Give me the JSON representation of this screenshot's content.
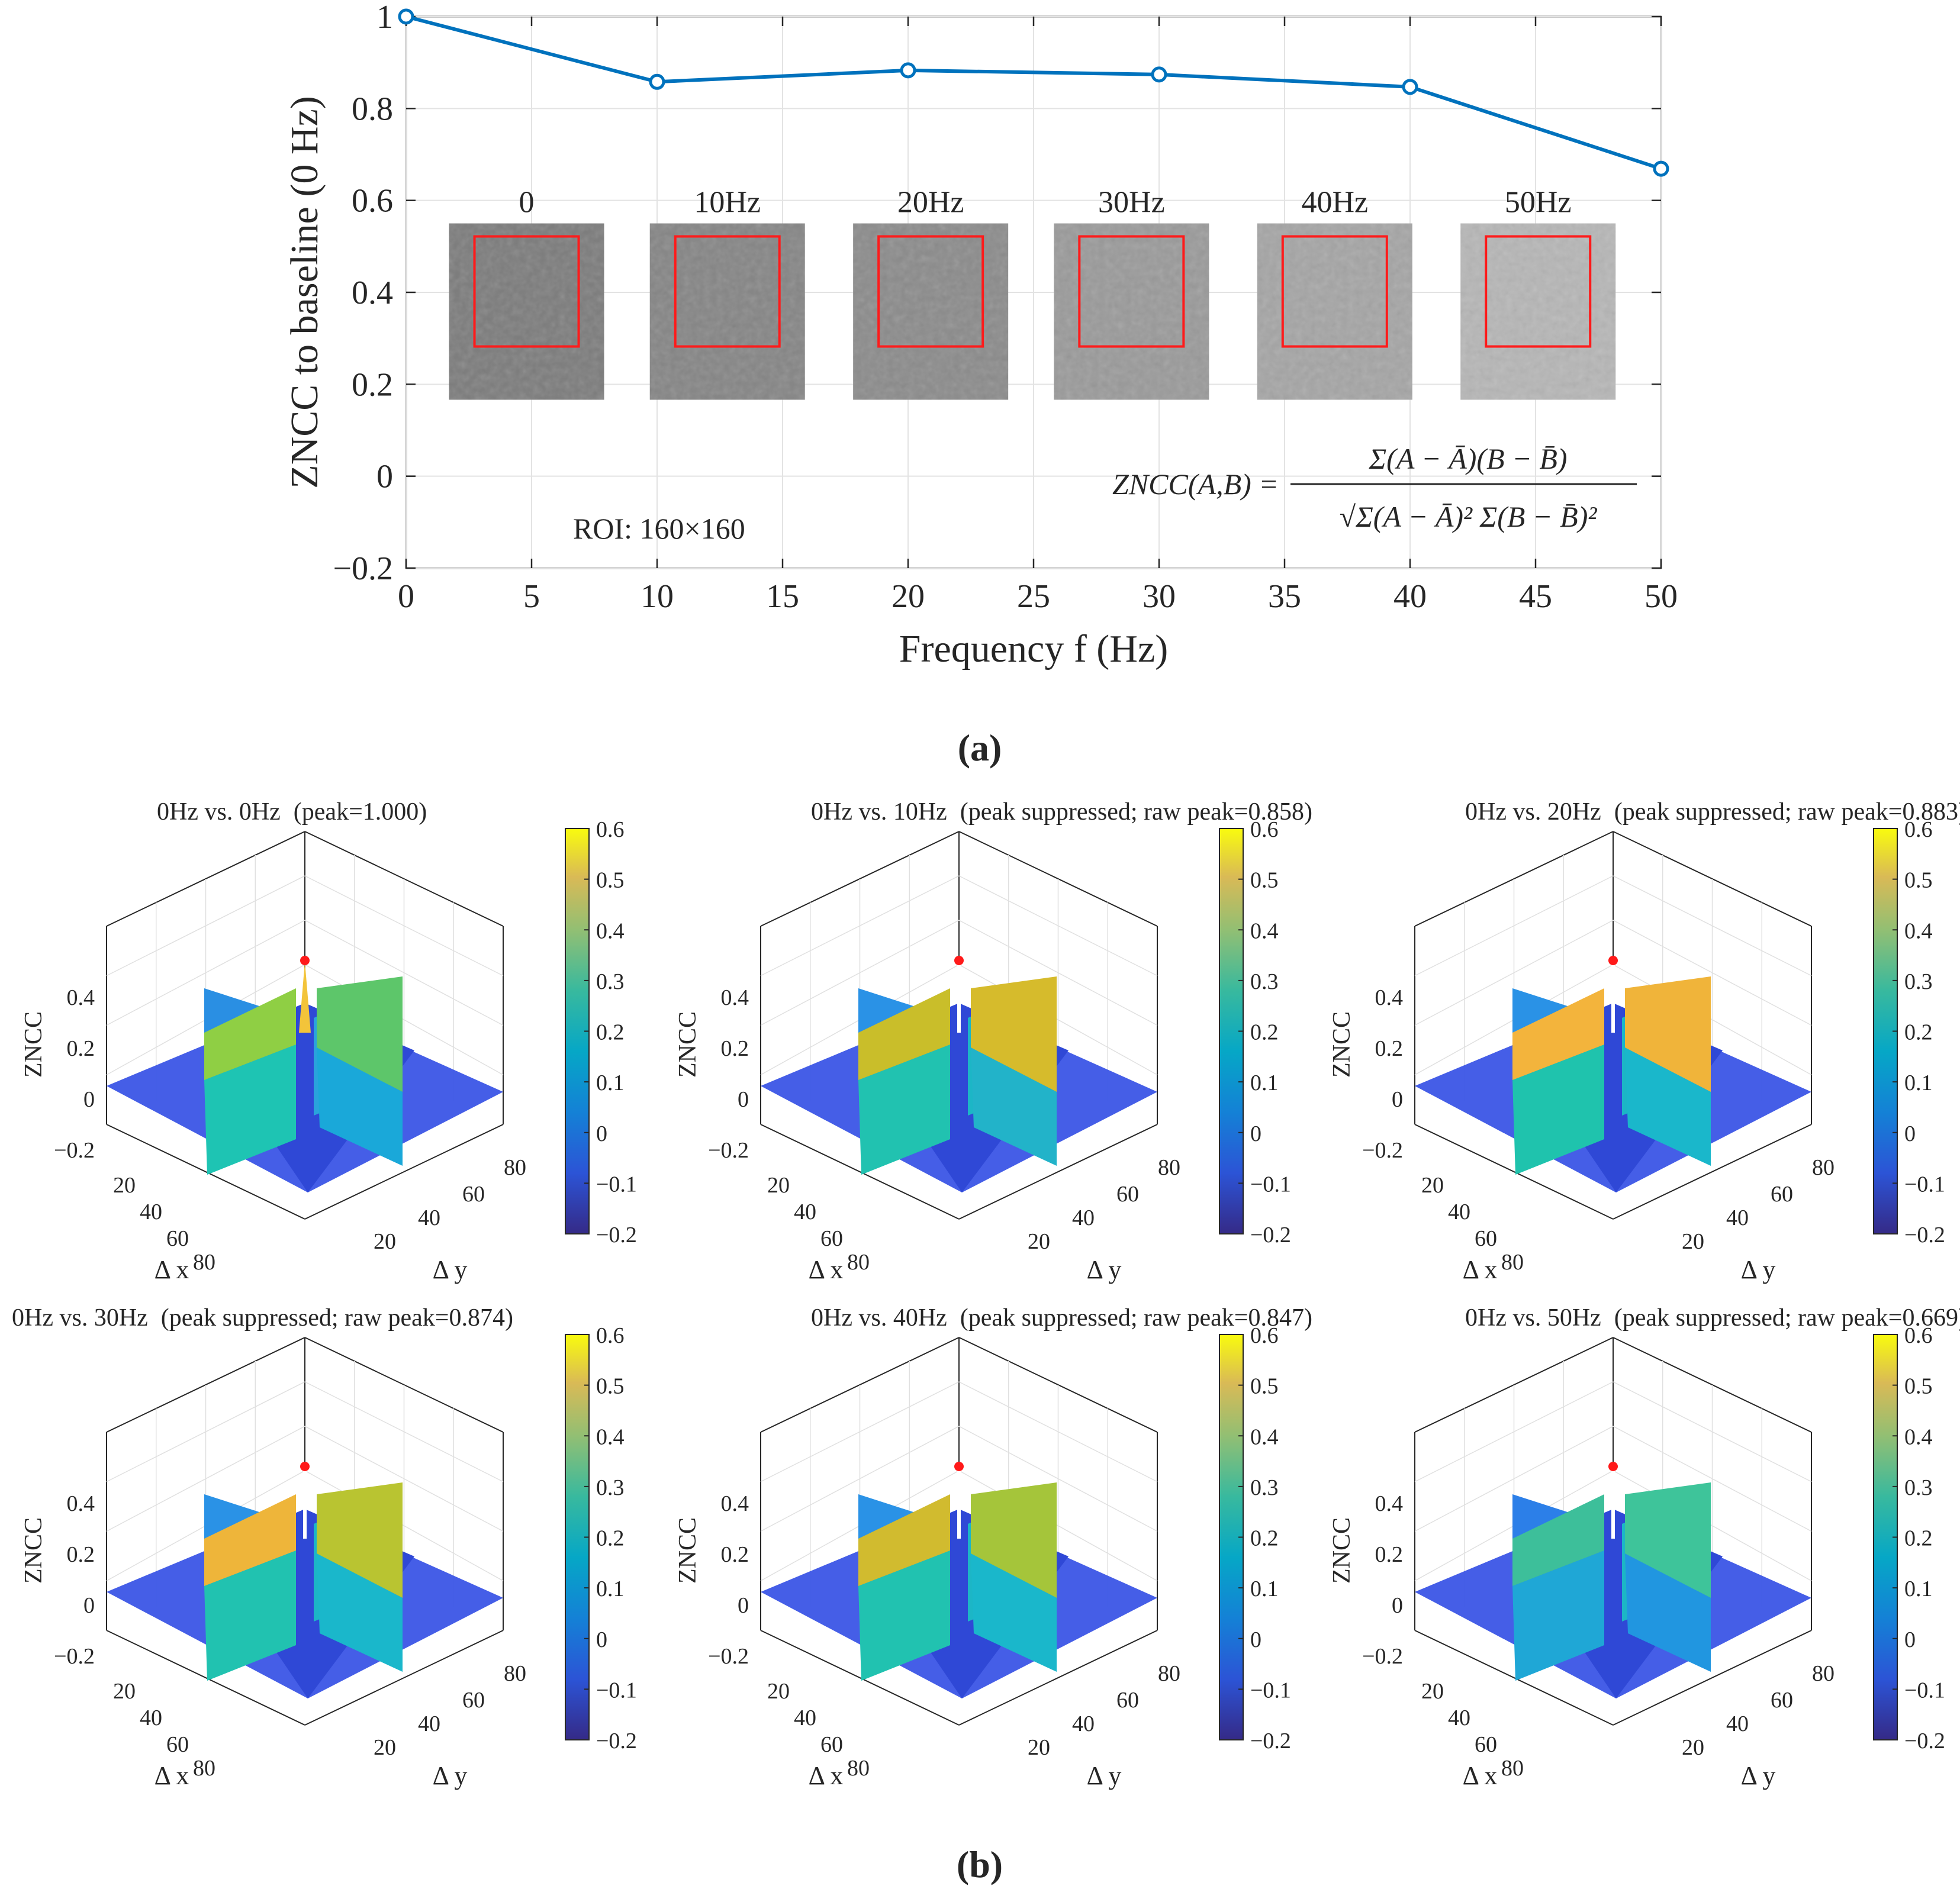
{
  "figure": {
    "label_a": "(a)",
    "label_b": "(b)"
  },
  "chart_data": [
    {
      "type": "line",
      "panel": "a",
      "title": "",
      "xlabel": "Frequency f (Hz)",
      "ylabel": "ZNCC to baseline (0 Hz)",
      "xlim": [
        0,
        50
      ],
      "ylim": [
        -0.2,
        1.0
      ],
      "xticks": [
        0,
        5,
        10,
        15,
        20,
        25,
        30,
        35,
        40,
        45,
        50
      ],
      "yticks": [
        -0.2,
        0,
        0.2,
        0.4,
        0.6,
        0.8,
        1
      ],
      "ytick_labels": [
        "−0.2",
        "0",
        "0.2",
        "0.4",
        "0.6",
        "0.8",
        "1"
      ],
      "grid": true,
      "series": [
        {
          "name": "ZNCC",
          "color": "#0072BD",
          "x": [
            0,
            10,
            20,
            30,
            40,
            50
          ],
          "y": [
            1.0,
            0.858,
            0.883,
            0.874,
            0.847,
            0.669
          ]
        }
      ],
      "inset_images": [
        {
          "label": "0",
          "x": 4.8,
          "gray": "#7c7c7c"
        },
        {
          "label": "10Hz",
          "x": 12.8,
          "gray": "#858585"
        },
        {
          "label": "20Hz",
          "x": 20.9,
          "gray": "#8b8b8b"
        },
        {
          "label": "30Hz",
          "x": 28.9,
          "gray": "#9a9a9a"
        },
        {
          "label": "40Hz",
          "x": 37.0,
          "gray": "#a5a5a5"
        },
        {
          "label": "50Hz",
          "x": 45.1,
          "gray": "#b6b6b6"
        }
      ],
      "annotations": {
        "roi": "ROI:   160×160",
        "formula_lhs": "ZNCC(A,B) =",
        "formula_num": "Σ(A − Ā)(B − B̄)",
        "formula_den": "√Σ(A − Ā)² Σ(B − B̄)²"
      }
    },
    {
      "type": "surface3d",
      "panel": "b",
      "zlabel": "ZNCC",
      "xlabel": "Δ x",
      "ylabel": "Δ y",
      "zticks": [
        -0.2,
        0,
        0.2,
        0.4
      ],
      "ztick_labels": [
        "−0.2",
        "0",
        "0.2",
        "0.4"
      ],
      "xticks": [
        20,
        40,
        60,
        80
      ],
      "yticks": [
        20,
        40,
        60,
        80
      ],
      "colorbar": {
        "range": [
          -0.2,
          0.6
        ],
        "ticks": [
          "0.6",
          "0.5",
          "0.4",
          "0.3",
          "0.2",
          "0.1",
          "0",
          "−0.1",
          "−0.2"
        ],
        "colormap": "parula"
      },
      "subplots": [
        {
          "name": "0Hz vs. 0Hz",
          "note": "(peak=1.000)",
          "peak": 1.0,
          "suppressed": false,
          "left_wall_top": "#8fcf44",
          "right_wall_top": "#5dc66a",
          "left_wall_bottom": "#1ec4b3",
          "right_wall_bottom": "#1aa8d9",
          "back_left": "#2a8fe3",
          "back_right": "#2aa3dc"
        },
        {
          "name": "0Hz vs. 10Hz",
          "note": "(peak suppressed; raw peak=0.858)",
          "peak": 0.858,
          "suppressed": true,
          "left_wall_top": "#c9be2a",
          "right_wall_top": "#d6bb2c",
          "left_wall_bottom": "#21c2b0",
          "right_wall_bottom": "#22b3c9",
          "back_left": "#2a92e6",
          "back_right": "#1cb6c6"
        },
        {
          "name": "0Hz vs. 20Hz",
          "note": "(peak suppressed; raw peak=0.883)",
          "peak": 0.883,
          "suppressed": true,
          "left_wall_top": "#f3b43c",
          "right_wall_top": "#f0b43a",
          "left_wall_bottom": "#1fc3ad",
          "right_wall_bottom": "#1ab7cb",
          "back_left": "#2a92e6",
          "back_right": "#1cb6c6"
        },
        {
          "name": "0Hz vs. 30Hz",
          "note": "(peak suppressed; raw peak=0.874)",
          "peak": 0.874,
          "suppressed": true,
          "left_wall_top": "#eeb53a",
          "right_wall_top": "#b9c431",
          "left_wall_bottom": "#21c2b0",
          "right_wall_bottom": "#1ab7cb",
          "back_left": "#2a92e6",
          "back_right": "#1cb6c6"
        },
        {
          "name": "0Hz vs. 40Hz",
          "note": "(peak suppressed; raw peak=0.847)",
          "peak": 0.847,
          "suppressed": true,
          "left_wall_top": "#d1bb2f",
          "right_wall_top": "#a5c53a",
          "left_wall_bottom": "#21c2b0",
          "right_wall_bottom": "#1ab7cb",
          "back_left": "#2a92e6",
          "back_right": "#1cb6c6"
        },
        {
          "name": "0Hz vs. 50Hz",
          "note": "(peak suppressed; raw peak=0.669)",
          "peak": 0.669,
          "suppressed": true,
          "left_wall_top": "#3dbf9a",
          "right_wall_top": "#3ec49a",
          "left_wall_bottom": "#1fa7d6",
          "right_wall_bottom": "#2196e0",
          "back_left": "#2c7fe8",
          "back_right": "#1cb6c6"
        }
      ]
    }
  ]
}
